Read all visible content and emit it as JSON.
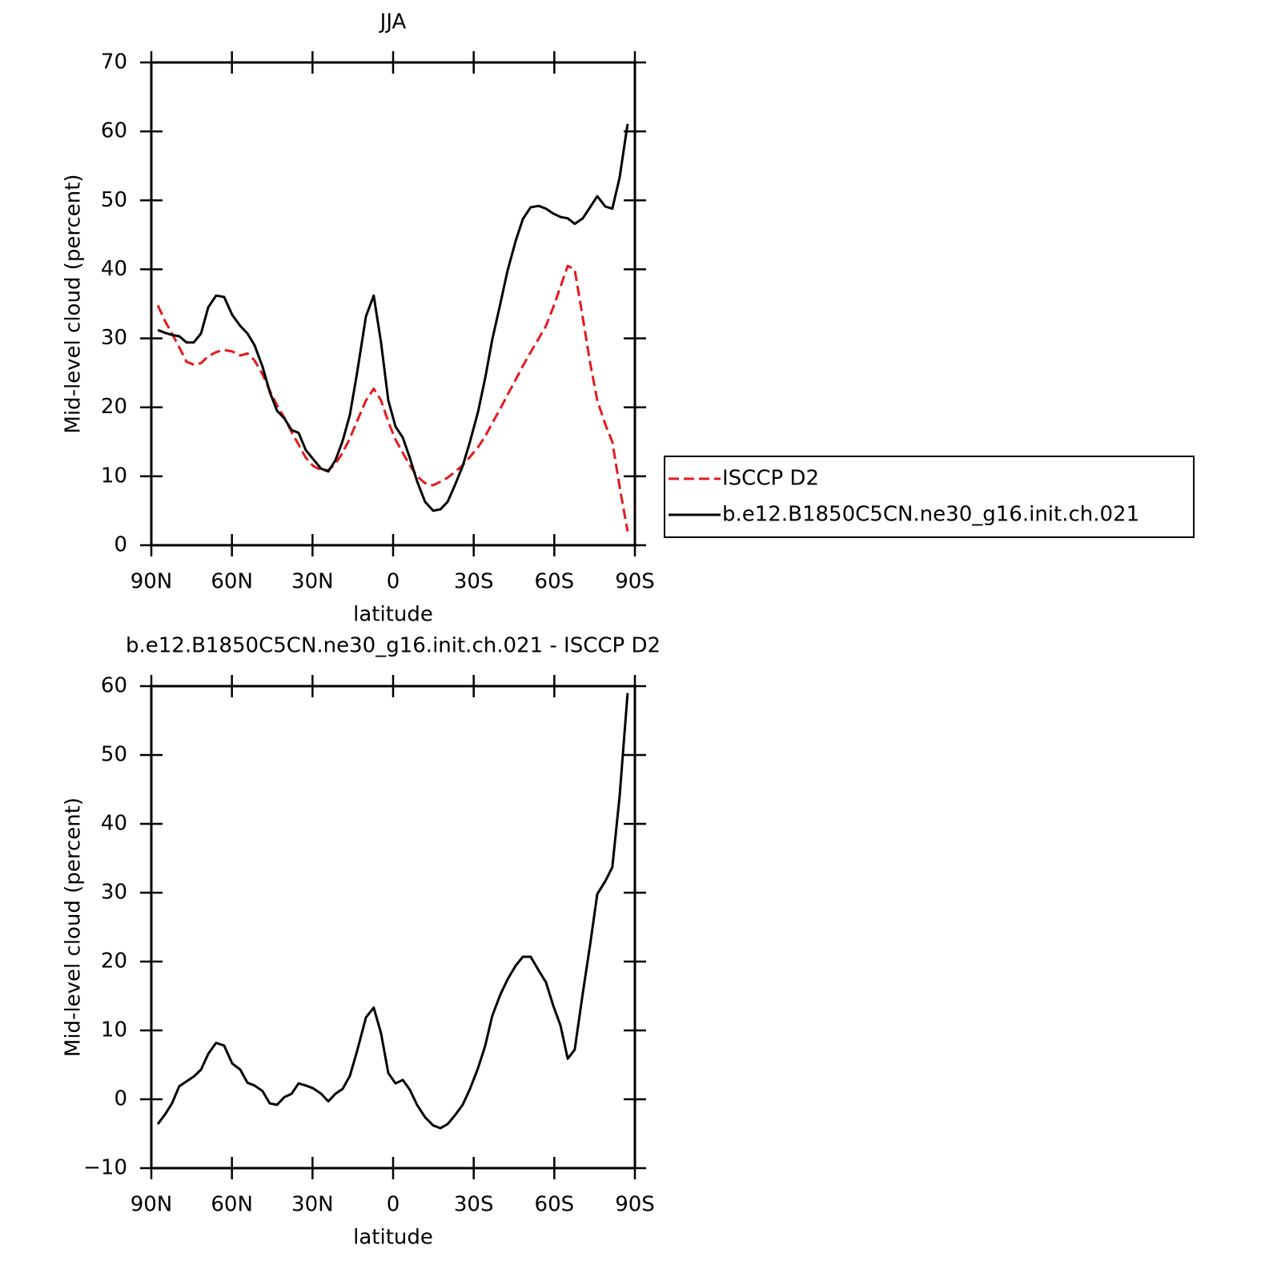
{
  "chart_data": [
    {
      "type": "line",
      "title": "JJA",
      "xlabel": "latitude",
      "ylabel": "Mid-level cloud (percent)",
      "x": [
        87.6,
        84.9,
        82.3,
        79.6,
        76.9,
        74.2,
        71.5,
        68.8,
        65.9,
        62.9,
        59.9,
        56.9,
        54.2,
        51.6,
        48.6,
        45.9,
        43.2,
        40.5,
        37.8,
        35.2,
        32.5,
        29.8,
        26.8,
        24.1,
        21.5,
        18.8,
        16.1,
        13.4,
        10.1,
        7.2,
        4.5,
        1.8,
        -0.9,
        -3.6,
        -6.2,
        -8.9,
        -11.9,
        -14.9,
        -17.6,
        -20.3,
        -22.9,
        -25.9,
        -28.6,
        -31.6,
        -34.3,
        -36.9,
        -39.9,
        -42.6,
        -45.6,
        -48.3,
        -51.2,
        -54.2,
        -56.9,
        -59.6,
        -62.3,
        -65.0,
        -67.6,
        -70.6,
        -73.3,
        -76.0,
        -79.0,
        -81.6,
        -84.3,
        -87.3
      ],
      "xlim": [
        90,
        -90
      ],
      "xticks": [
        {
          "value": 90,
          "label": "90N"
        },
        {
          "value": 60,
          "label": "60N"
        },
        {
          "value": 30,
          "label": "30N"
        },
        0,
        {
          "value": -30,
          "label": "30S"
        },
        {
          "value": -60,
          "label": "60S"
        },
        {
          "value": -90,
          "label": "90S"
        }
      ],
      "ylim": [
        0,
        70
      ],
      "yticks": [
        0,
        10,
        20,
        30,
        40,
        50,
        60,
        70
      ],
      "legend": "right",
      "series": [
        {
          "name": "ISCCP D2",
          "color": "#e41a1c",
          "dash": true,
          "values": [
            34.8,
            32.5,
            30.7,
            28.7,
            26.6,
            26.2,
            26.4,
            27.4,
            28.0,
            28.3,
            28.1,
            27.5,
            27.8,
            26.8,
            24.8,
            22.4,
            20.3,
            18.5,
            16.4,
            14.6,
            12.7,
            11.5,
            10.9,
            10.9,
            11.8,
            13.4,
            15.5,
            18.0,
            21.0,
            22.7,
            21.0,
            17.9,
            15.3,
            13.4,
            11.6,
            10.0,
            9.0,
            8.7,
            9.2,
            9.8,
            10.6,
            11.6,
            12.8,
            14.2,
            15.8,
            17.7,
            19.8,
            21.8,
            24.0,
            26.0,
            28.0,
            30.0,
            31.8,
            34.5,
            37.5,
            40.5,
            40.0,
            33.0,
            26.5,
            21.0,
            17.5,
            15.0,
            8.5,
            2.0
          ]
        },
        {
          "name": "b.e12.B1850C5CN.ne30_g16.init.ch.021",
          "color": "#000000",
          "dash": false,
          "values": [
            31.2,
            30.8,
            30.5,
            30.3,
            29.4,
            29.4,
            30.7,
            34.5,
            36.2,
            36.0,
            33.4,
            31.8,
            30.7,
            29.0,
            25.9,
            22.2,
            19.5,
            18.4,
            16.7,
            16.3,
            13.8,
            12.5,
            11.1,
            10.7,
            12.3,
            15.1,
            18.9,
            25.0,
            33.2,
            36.2,
            29.4,
            21.0,
            17.2,
            15.6,
            12.7,
            9.3,
            6.3,
            5.0,
            5.2,
            6.3,
            8.6,
            11.5,
            15.0,
            19.3,
            24.3,
            29.8,
            35.0,
            39.8,
            44.1,
            47.3,
            49.0,
            49.2,
            48.8,
            48.1,
            47.6,
            47.4,
            46.6,
            47.4,
            49.0,
            50.6,
            49.1,
            48.8,
            53.3,
            61.1
          ]
        }
      ]
    },
    {
      "type": "line",
      "title": "b.e12.B1850C5CN.ne30_g16.init.ch.021 - ISCCP D2",
      "xlabel": "latitude",
      "ylabel": "Mid-level cloud (percent)",
      "x": [
        87.6,
        84.9,
        82.3,
        79.6,
        76.9,
        74.2,
        71.5,
        68.8,
        65.9,
        62.9,
        59.9,
        56.9,
        54.2,
        51.6,
        48.6,
        45.9,
        43.2,
        40.5,
        37.8,
        35.2,
        32.5,
        29.8,
        26.8,
        24.1,
        21.5,
        18.8,
        16.1,
        13.4,
        10.1,
        7.2,
        4.5,
        1.8,
        -0.9,
        -3.6,
        -6.2,
        -8.9,
        -11.9,
        -14.9,
        -17.6,
        -20.3,
        -22.9,
        -25.9,
        -28.6,
        -31.6,
        -34.3,
        -36.9,
        -39.9,
        -42.6,
        -45.6,
        -48.3,
        -51.2,
        -54.2,
        -56.9,
        -59.6,
        -62.3,
        -65.0,
        -67.6,
        -70.6,
        -73.3,
        -76.0,
        -79.0,
        -81.6,
        -84.3,
        -87.3
      ],
      "xlim": [
        90,
        -90
      ],
      "xticks": [
        {
          "value": 90,
          "label": "90N"
        },
        {
          "value": 60,
          "label": "60N"
        },
        {
          "value": 30,
          "label": "30N"
        },
        0,
        {
          "value": -30,
          "label": "30S"
        },
        {
          "value": -60,
          "label": "60S"
        },
        {
          "value": -90,
          "label": "90S"
        }
      ],
      "ylim": [
        -10,
        60
      ],
      "yticks": [
        {
          "value": -10,
          "label": "−10"
        },
        0,
        10,
        20,
        30,
        40,
        50,
        60
      ],
      "series": [
        {
          "name": "b.e12.B1850C5CN.ne30_g16.init.ch.021 - ISCCP D2",
          "color": "#000000",
          "dash": false,
          "values": [
            -3.6,
            -2.2,
            -0.6,
            1.9,
            2.6,
            3.3,
            4.3,
            6.6,
            8.2,
            7.8,
            5.2,
            4.3,
            2.4,
            2.0,
            1.2,
            -0.6,
            -0.8,
            0.3,
            0.8,
            2.3,
            2.0,
            1.6,
            0.8,
            -0.3,
            0.8,
            1.5,
            3.4,
            7.0,
            11.9,
            13.3,
            9.6,
            3.8,
            2.3,
            2.8,
            1.4,
            -0.8,
            -2.6,
            -3.8,
            -4.2,
            -3.6,
            -2.4,
            -0.8,
            1.5,
            4.5,
            7.8,
            12.1,
            15.2,
            17.4,
            19.4,
            20.7,
            20.7,
            18.7,
            17.0,
            13.6,
            10.7,
            5.9,
            7.2,
            15.4,
            22.4,
            29.8,
            31.7,
            33.7,
            44.0,
            59.0
          ]
        }
      ]
    }
  ]
}
